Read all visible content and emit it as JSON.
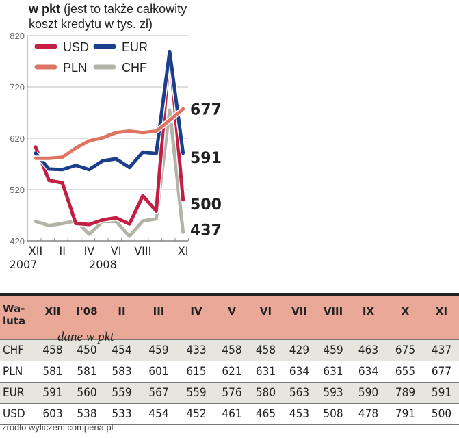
{
  "title_bold": "w pkt",
  "title_rest": " (jest to także całkowity",
  "title_line2": "koszt kredytu w tys. zł)",
  "colors": {
    "USD": "#c41e44",
    "EUR": "#1c3f8c",
    "PLN": "#de7462",
    "CHF": "#b3b3a7",
    "header": "#e9a898",
    "alt_row": "#e6e6df"
  },
  "chart_data": {
    "type": "line",
    "title": "w pkt (jest to także całkowity koszt kredytu w tys. zł)",
    "x": [
      "XII",
      "I'08",
      "II",
      "III",
      "IV",
      "V",
      "VI",
      "VII",
      "VIII",
      "IX",
      "X",
      "XI"
    ],
    "x_tick_labels": [
      {
        "i": 0,
        "label": "XII"
      },
      {
        "i": 2,
        "label": "II"
      },
      {
        "i": 4,
        "label": "IV"
      },
      {
        "i": 6,
        "label": "VI"
      },
      {
        "i": 8,
        "label": "VIII"
      },
      {
        "i": 11,
        "label": "XI"
      }
    ],
    "year_labels": [
      {
        "i": 0,
        "label": "2007"
      },
      {
        "i": 4,
        "label": "2008"
      }
    ],
    "ylim": [
      420,
      820
    ],
    "yticks": [
      420,
      520,
      620,
      720,
      820
    ],
    "grid": true,
    "legend": "top-left",
    "series": [
      {
        "name": "USD",
        "values": [
          603,
          538,
          533,
          454,
          452,
          461,
          465,
          453,
          508,
          478,
          791,
          500
        ],
        "end_label": "500"
      },
      {
        "name": "EUR",
        "values": [
          591,
          560,
          559,
          567,
          559,
          576,
          580,
          563,
          593,
          590,
          789,
          591
        ],
        "end_label": "591"
      },
      {
        "name": "PLN",
        "values": [
          581,
          581,
          583,
          601,
          615,
          621,
          631,
          634,
          631,
          634,
          655,
          677
        ],
        "end_label": "677"
      },
      {
        "name": "CHF",
        "values": [
          458,
          450,
          454,
          459,
          433,
          458,
          458,
          429,
          459,
          463,
          675,
          437
        ],
        "end_label": "437"
      }
    ]
  },
  "table": {
    "header_label_1": "Wa-",
    "header_label_2": "luta",
    "subtitle": "dane w pkt",
    "columns": [
      "XII",
      "I'08",
      "II",
      "III",
      "IV",
      "V",
      "VI",
      "VII",
      "VIII",
      "IX",
      "X",
      "XI"
    ],
    "rows": [
      {
        "name": "CHF",
        "values": [
          "458",
          "450",
          "454",
          "459",
          "433",
          "458",
          "458",
          "429",
          "459",
          "463",
          "675",
          "437"
        ]
      },
      {
        "name": "PLN",
        "values": [
          "581",
          "581",
          "583",
          "601",
          "615",
          "621",
          "631",
          "634",
          "631",
          "634",
          "655",
          "677"
        ]
      },
      {
        "name": "EUR",
        "values": [
          "591",
          "560",
          "559",
          "567",
          "559",
          "576",
          "580",
          "563",
          "593",
          "590",
          "789",
          "591"
        ]
      },
      {
        "name": "USD",
        "values": [
          "603",
          "538",
          "533",
          "454",
          "452",
          "461",
          "465",
          "453",
          "508",
          "478",
          "791",
          "500"
        ]
      }
    ]
  },
  "source": "źródło wyliczeń: comperia.pl"
}
